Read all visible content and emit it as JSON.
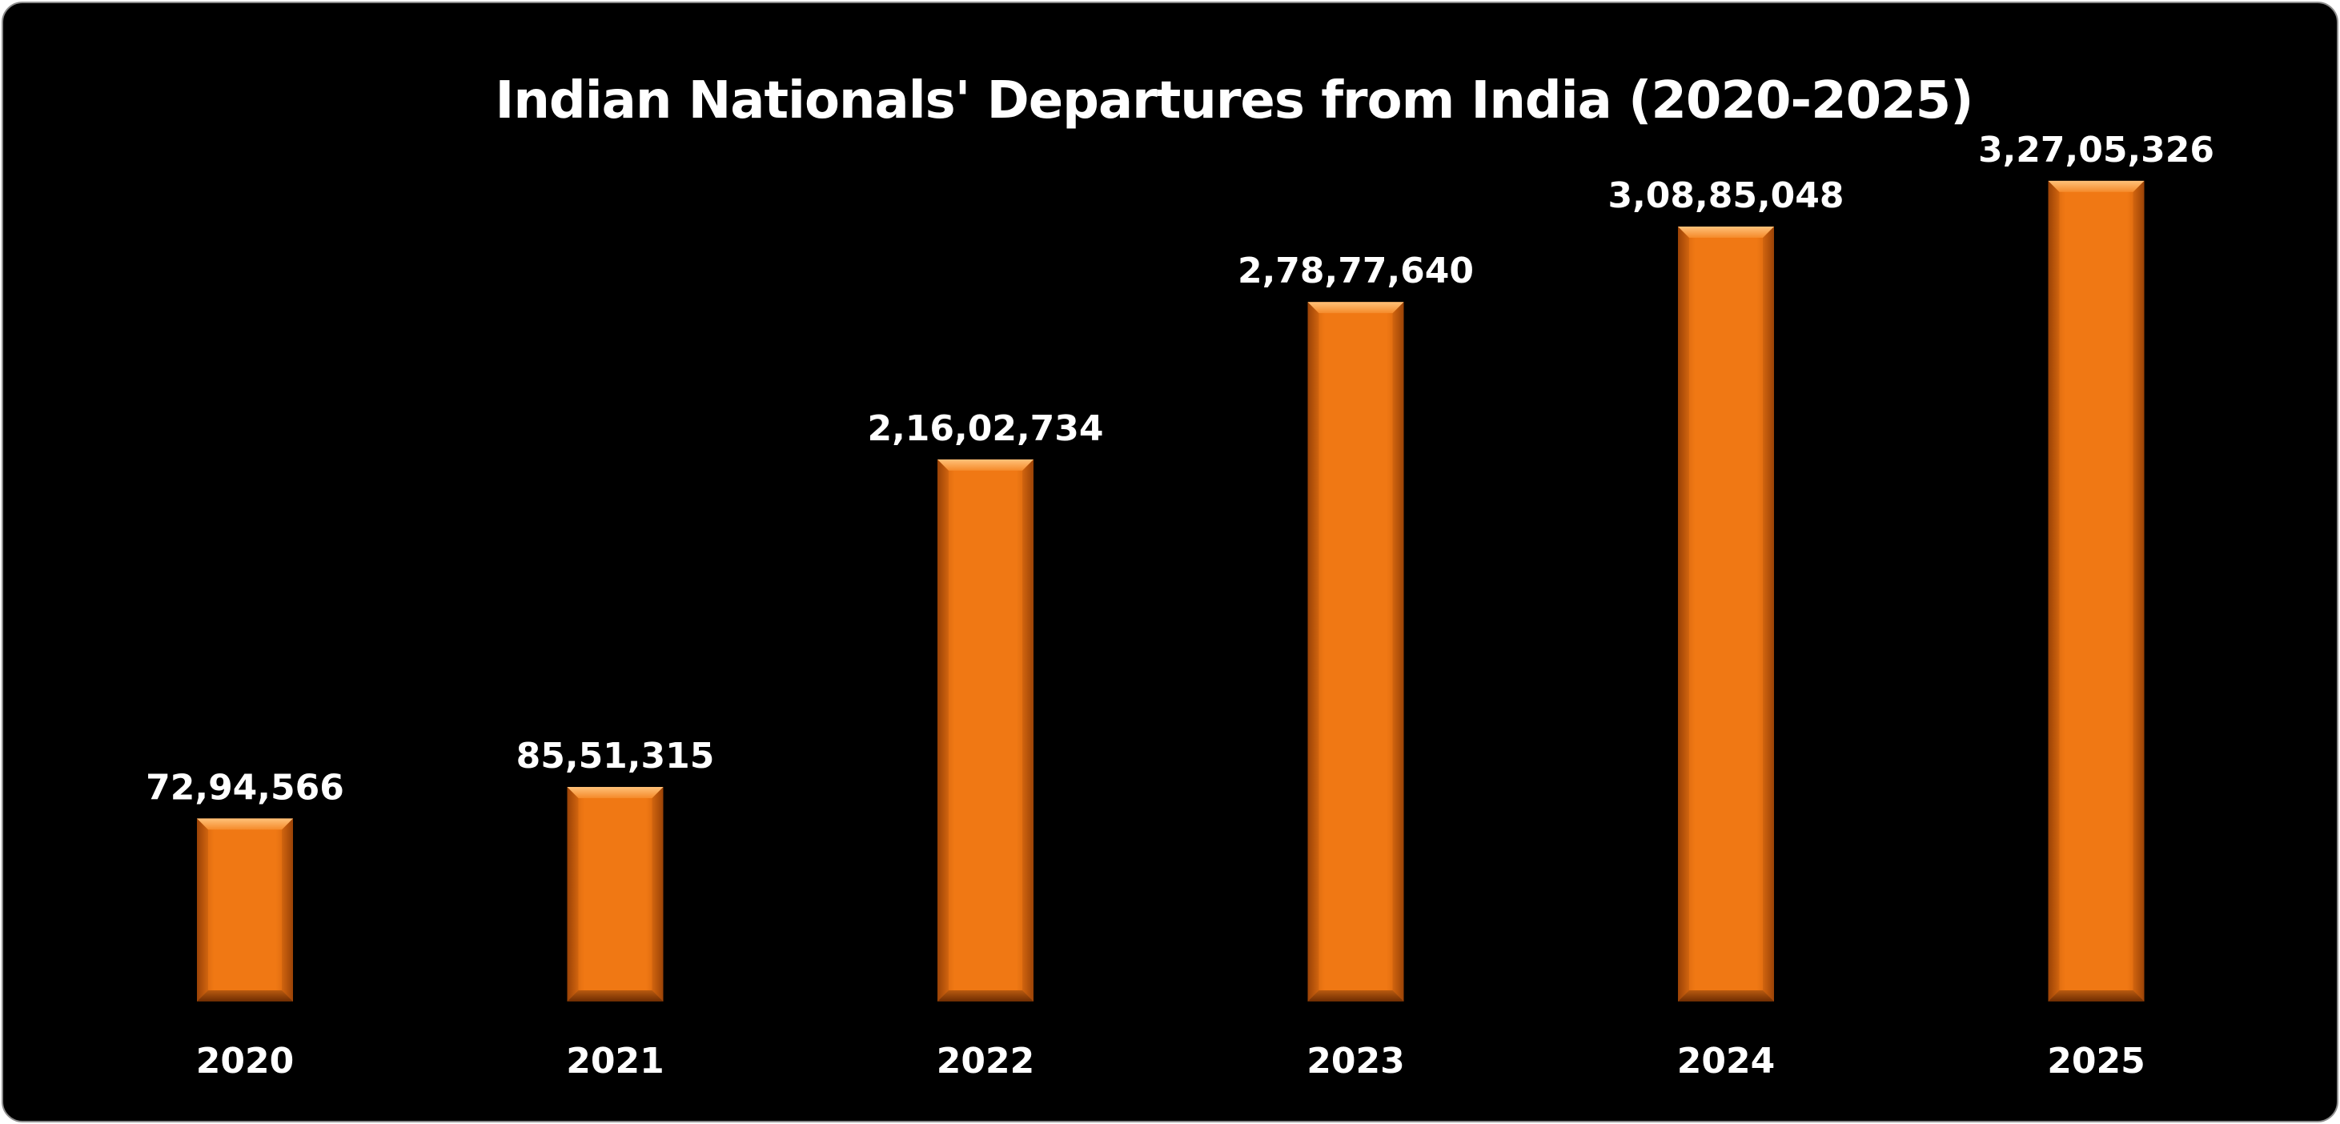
{
  "chart_data": {
    "type": "bar",
    "title": "Indian Nationals' Departures from India (2020-2025)",
    "categories": [
      "2020",
      "2021",
      "2022",
      "2023",
      "2024",
      "2025"
    ],
    "values": [
      7294566,
      8551315,
      21602734,
      27877640,
      30885048,
      32705326
    ],
    "data_labels": [
      "72,94,566",
      "85,51,315",
      "2,16,02,734",
      "2,78,77,640",
      "3,08,85,048",
      "3,27,05,326"
    ],
    "xlabel": "",
    "ylabel": "",
    "ylim": [
      0,
      35000000
    ],
    "grid": false,
    "legend": "none",
    "colors": {
      "background": "#000000",
      "bar": "#F07814",
      "bar_highlight": "#FFB35E",
      "bar_shadow": "#8A3A04",
      "text": "#FFFFFF"
    }
  }
}
